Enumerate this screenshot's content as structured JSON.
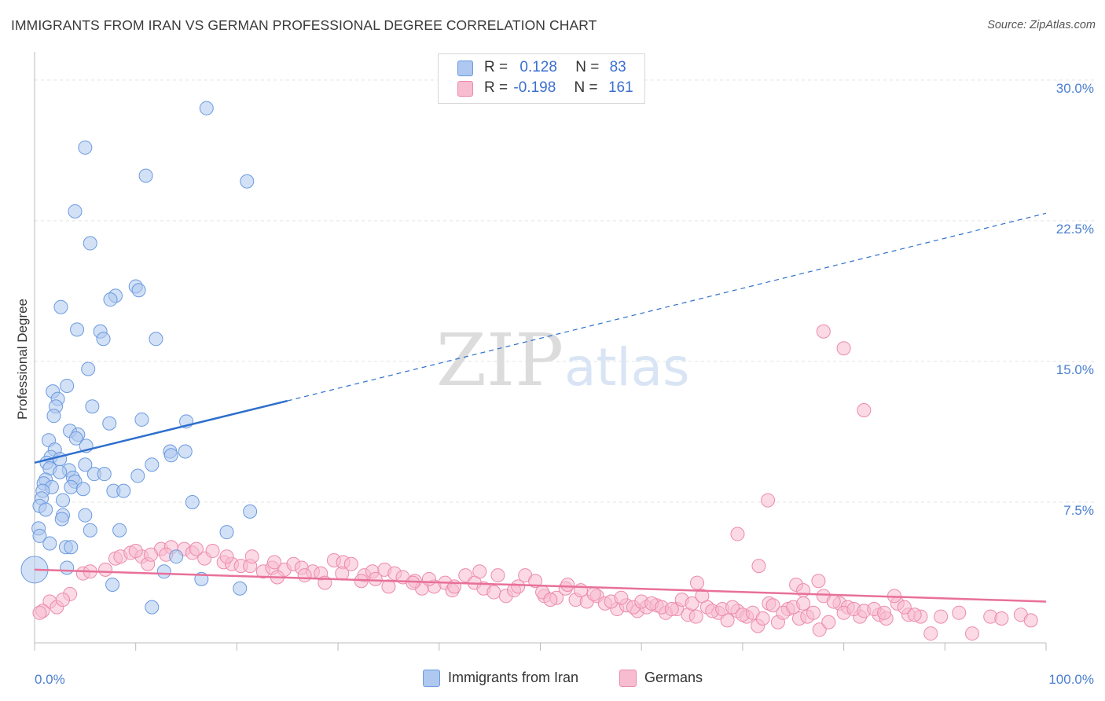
{
  "title": "IMMIGRANTS FROM IRAN VS GERMAN PROFESSIONAL DEGREE CORRELATION CHART",
  "source": "Source: ZipAtlas.com",
  "watermark": {
    "zip": "ZIP",
    "atlas": "atlas"
  },
  "legend": {
    "row1": {
      "r_label": "R =",
      "r_value": "0.128",
      "n_label": "N =",
      "n_value": "83"
    },
    "row2": {
      "r_label": "R =",
      "r_value": "-0.198",
      "n_label": "N =",
      "n_value": "161"
    }
  },
  "bottom_legend": {
    "series1": "Immigrants from Iran",
    "series2": "Germans"
  },
  "colors": {
    "blue_fill": "#aec8ef",
    "blue_stroke": "#6b9ae0",
    "blue_line": "#2e6fcc",
    "pink_fill": "#f7bcd0",
    "pink_stroke": "#ec8aaa",
    "pink_line": "#e8709a",
    "axis_text": "#4a7fd0",
    "grid": "#e3e3e3"
  },
  "chart_data": {
    "type": "scatter",
    "title": "IMMIGRANTS FROM IRAN VS GERMAN PROFESSIONAL DEGREE CORRELATION CHART",
    "xlabel": "",
    "ylabel": "Professional Degree",
    "xlim": [
      0,
      100
    ],
    "ylim": [
      0,
      31
    ],
    "x_ticks_labels": [
      "0.0%",
      "100.0%"
    ],
    "y_ticks": [
      7.5,
      15.0,
      22.5,
      30.0
    ],
    "y_tick_labels": [
      "7.5%",
      "15.0%",
      "22.5%",
      "30.0%"
    ],
    "grid": true,
    "series": [
      {
        "name": "Immigrants from Iran",
        "R": 0.128,
        "N": 83,
        "trend": {
          "x0": 0,
          "y0": 9.6,
          "x1": 25,
          "y1": 12.9,
          "dash_x1": 100,
          "dash_y1": 22.9
        },
        "points": [
          [
            17,
            28.5
          ],
          [
            5,
            26.4
          ],
          [
            11,
            24.9
          ],
          [
            21,
            24.6
          ],
          [
            4,
            23
          ],
          [
            5.5,
            21.3
          ],
          [
            10,
            19
          ],
          [
            10.3,
            18.8
          ],
          [
            8,
            18.5
          ],
          [
            7.5,
            18.3
          ],
          [
            2.6,
            17.9
          ],
          [
            4.2,
            16.7
          ],
          [
            6.5,
            16.6
          ],
          [
            6.8,
            16.2
          ],
          [
            12,
            16.2
          ],
          [
            5.3,
            14.6
          ],
          [
            3.2,
            13.7
          ],
          [
            1.8,
            13.4
          ],
          [
            2.3,
            13
          ],
          [
            2.1,
            12.6
          ],
          [
            5.7,
            12.6
          ],
          [
            1.9,
            12.1
          ],
          [
            10.6,
            11.9
          ],
          [
            15,
            11.8
          ],
          [
            7.4,
            11.7
          ],
          [
            3.5,
            11.3
          ],
          [
            4.3,
            11.1
          ],
          [
            4.1,
            10.9
          ],
          [
            1.4,
            10.8
          ],
          [
            5.1,
            10.5
          ],
          [
            2,
            10.3
          ],
          [
            13.4,
            10.2
          ],
          [
            14.9,
            10.2
          ],
          [
            13.5,
            10
          ],
          [
            1.6,
            9.9
          ],
          [
            2.5,
            9.8
          ],
          [
            1.2,
            9.6
          ],
          [
            5,
            9.5
          ],
          [
            11.6,
            9.5
          ],
          [
            1.5,
            9.3
          ],
          [
            3.4,
            9.2
          ],
          [
            2.5,
            9.1
          ],
          [
            5.9,
            9
          ],
          [
            6.9,
            9
          ],
          [
            10.2,
            8.9
          ],
          [
            3.8,
            8.8
          ],
          [
            1.1,
            8.7
          ],
          [
            4,
            8.6
          ],
          [
            0.9,
            8.5
          ],
          [
            3.6,
            8.3
          ],
          [
            1.7,
            8.3
          ],
          [
            4.8,
            8.2
          ],
          [
            7.8,
            8.1
          ],
          [
            8.8,
            8.1
          ],
          [
            0.8,
            8.1
          ],
          [
            0.7,
            7.7
          ],
          [
            2.8,
            7.6
          ],
          [
            15.6,
            7.5
          ],
          [
            0.5,
            7.3
          ],
          [
            1.1,
            7.1
          ],
          [
            21.3,
            7
          ],
          [
            2.8,
            6.8
          ],
          [
            5,
            6.8
          ],
          [
            2.7,
            6.6
          ],
          [
            0.4,
            6.1
          ],
          [
            5.5,
            6
          ],
          [
            8.4,
            6
          ],
          [
            19,
            5.9
          ],
          [
            0.5,
            5.7
          ],
          [
            1.5,
            5.3
          ],
          [
            3.1,
            5.1
          ],
          [
            3.6,
            5.1
          ],
          [
            14,
            4.6
          ],
          [
            3.2,
            4
          ],
          [
            0,
            3.9
          ],
          [
            12.8,
            3.8
          ],
          [
            16.5,
            3.4
          ],
          [
            7.7,
            3.1
          ],
          [
            20.3,
            2.9
          ],
          [
            11.6,
            1.9
          ]
        ]
      },
      {
        "name": "Germans",
        "R": -0.198,
        "N": 161,
        "trend": {
          "x0": 0,
          "y0": 3.9,
          "x1": 100,
          "y1": 2.2
        },
        "points": [
          [
            78,
            16.6
          ],
          [
            80,
            15.7
          ],
          [
            82,
            12.4
          ],
          [
            72.5,
            7.6
          ],
          [
            69.5,
            5.8
          ],
          [
            71.6,
            4.1
          ],
          [
            75.3,
            3.1
          ],
          [
            76,
            2.8
          ],
          [
            77.5,
            3.3
          ],
          [
            65.5,
            3.2
          ],
          [
            1.5,
            2.2
          ],
          [
            2.2,
            1.9
          ],
          [
            0.8,
            1.7
          ],
          [
            0.5,
            1.6
          ],
          [
            3.5,
            2.6
          ],
          [
            2.8,
            2.3
          ],
          [
            4.8,
            3.7
          ],
          [
            5.5,
            3.8
          ],
          [
            7,
            3.9
          ],
          [
            8,
            4.5
          ],
          [
            8.5,
            4.6
          ],
          [
            9.5,
            4.8
          ],
          [
            10.6,
            4.6
          ],
          [
            11.2,
            4.2
          ],
          [
            12.5,
            5
          ],
          [
            13.5,
            5.1
          ],
          [
            14.8,
            5
          ],
          [
            15.6,
            4.8
          ],
          [
            16.8,
            4.5
          ],
          [
            17.6,
            4.9
          ],
          [
            18.7,
            4.3
          ],
          [
            19.5,
            4.2
          ],
          [
            20.4,
            4.1
          ],
          [
            21.3,
            4.1
          ],
          [
            22.6,
            3.8
          ],
          [
            23.5,
            4
          ],
          [
            24.7,
            3.9
          ],
          [
            25.6,
            4.2
          ],
          [
            26.4,
            4
          ],
          [
            27.5,
            3.8
          ],
          [
            28.3,
            3.7
          ],
          [
            29.6,
            4.4
          ],
          [
            30.5,
            4.3
          ],
          [
            31.3,
            4.2
          ],
          [
            32.6,
            3.6
          ],
          [
            33.4,
            3.8
          ],
          [
            34.6,
            3.9
          ],
          [
            35.6,
            3.7
          ],
          [
            36.4,
            3.5
          ],
          [
            37.6,
            3.3
          ],
          [
            38.3,
            2.9
          ],
          [
            39.5,
            3
          ],
          [
            40.6,
            3.2
          ],
          [
            41.3,
            2.8
          ],
          [
            42.6,
            3.6
          ],
          [
            43.5,
            3.2
          ],
          [
            44.4,
            2.9
          ],
          [
            45.4,
            2.7
          ],
          [
            46.6,
            2.5
          ],
          [
            47.4,
            2.8
          ],
          [
            48.5,
            3.6
          ],
          [
            49.5,
            3.3
          ],
          [
            50.4,
            2.5
          ],
          [
            51.6,
            2.4
          ],
          [
            52.5,
            2.9
          ],
          [
            53.5,
            2.3
          ],
          [
            54.6,
            2.2
          ],
          [
            55.6,
            2.5
          ],
          [
            56.4,
            2.1
          ],
          [
            57.6,
            1.8
          ],
          [
            58.5,
            2
          ],
          [
            59.6,
            1.7
          ],
          [
            60.5,
            1.9
          ],
          [
            61.5,
            2
          ],
          [
            62.4,
            1.6
          ],
          [
            63.5,
            1.8
          ],
          [
            64.6,
            1.5
          ],
          [
            65.4,
            1.4
          ],
          [
            66.5,
            1.9
          ],
          [
            67.6,
            1.6
          ],
          [
            68.5,
            1.2
          ],
          [
            69.5,
            1.7
          ],
          [
            70.4,
            1.4
          ],
          [
            71.5,
            0.9
          ],
          [
            72.6,
            2.1
          ],
          [
            73.5,
            1.1
          ],
          [
            74.5,
            1.8
          ],
          [
            75.6,
            1.3
          ],
          [
            76.4,
            1.4
          ],
          [
            77.6,
            0.7
          ],
          [
            78.5,
            1.1
          ],
          [
            79.6,
            2.1
          ],
          [
            80.4,
            1.9
          ],
          [
            81.6,
            1.4
          ],
          [
            83.5,
            1.5
          ],
          [
            84.2,
            1.3
          ],
          [
            85.3,
            2.1
          ],
          [
            86.4,
            1.5
          ],
          [
            87.6,
            1.4
          ],
          [
            88.6,
            0.5
          ],
          [
            89.6,
            1.4
          ],
          [
            91.4,
            1.6
          ],
          [
            92.7,
            0.5
          ],
          [
            94.5,
            1.4
          ],
          [
            95.6,
            1.3
          ],
          [
            97.5,
            1.5
          ],
          [
            98.5,
            1.2
          ],
          [
            10,
            4.9
          ],
          [
            11.5,
            4.7
          ],
          [
            13,
            4.7
          ],
          [
            16,
            5
          ],
          [
            19,
            4.6
          ],
          [
            21.5,
            4.6
          ],
          [
            23.7,
            4.3
          ],
          [
            24,
            3.5
          ],
          [
            26.7,
            3.6
          ],
          [
            28.7,
            3.2
          ],
          [
            30.4,
            3.7
          ],
          [
            32.3,
            3.3
          ],
          [
            33.7,
            3.4
          ],
          [
            35,
            3
          ],
          [
            37.4,
            3.2
          ],
          [
            39,
            3.4
          ],
          [
            41.5,
            3
          ],
          [
            44,
            3.8
          ],
          [
            45.8,
            3.6
          ],
          [
            47.8,
            3
          ],
          [
            50.2,
            2.7
          ],
          [
            51,
            2.3
          ],
          [
            52.7,
            3.1
          ],
          [
            54,
            2.8
          ],
          [
            55.3,
            2.6
          ],
          [
            57,
            2.2
          ],
          [
            58,
            2.4
          ],
          [
            59.2,
            1.9
          ],
          [
            60,
            2.2
          ],
          [
            61,
            2.1
          ],
          [
            62,
            1.9
          ],
          [
            63,
            1.8
          ],
          [
            64,
            2.3
          ],
          [
            65,
            2.1
          ],
          [
            66,
            2.5
          ],
          [
            67,
            1.7
          ],
          [
            68,
            1.8
          ],
          [
            69,
            1.9
          ],
          [
            70,
            1.5
          ],
          [
            71,
            1.6
          ],
          [
            72,
            1.3
          ],
          [
            73,
            2
          ],
          [
            74,
            1.6
          ],
          [
            75,
            1.9
          ],
          [
            76,
            2.1
          ],
          [
            77,
            1.6
          ],
          [
            78,
            2.5
          ],
          [
            79,
            2.2
          ],
          [
            80,
            1.6
          ],
          [
            81,
            1.8
          ],
          [
            82,
            1.7
          ],
          [
            83,
            1.8
          ],
          [
            84,
            1.6
          ],
          [
            85,
            2.5
          ],
          [
            86,
            1.9
          ],
          [
            87,
            1.5
          ]
        ]
      }
    ]
  }
}
